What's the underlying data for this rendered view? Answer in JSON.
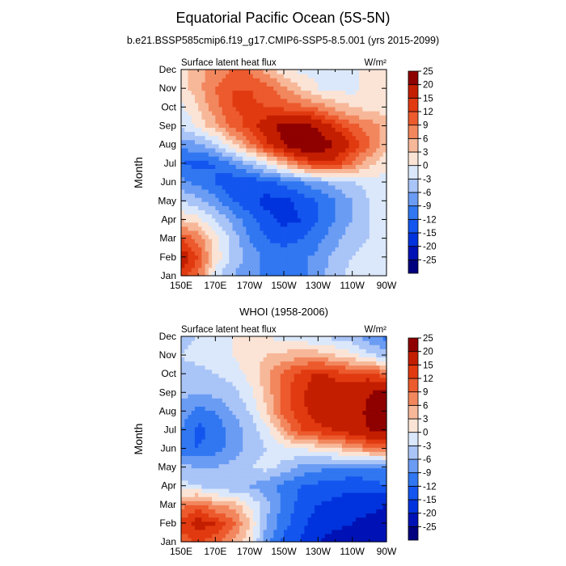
{
  "figure": {
    "title": "Equatorial Pacific Ocean (5S-5N)",
    "subtitle": "b.e21.BSSP585cmip6.f19_g17.CMIP6-SSP5-8.5.001 (yrs 2015-2099)"
  },
  "colorbar": {
    "levels": [
      "-25",
      "-20",
      "-15",
      "-12",
      "-9",
      "-6",
      "-3",
      "0",
      "3",
      "6",
      "9",
      "12",
      "15",
      "20",
      "25"
    ],
    "colors": [
      "#00007f",
      "#0012b5",
      "#0033dd",
      "#1355ee",
      "#3077f1",
      "#6a9cf4",
      "#a9c4f7",
      "#dbe8fb",
      "#fbe4d6",
      "#f7b899",
      "#f2875e",
      "#ec5a2d",
      "#e13a10",
      "#c41e00",
      "#8f0000"
    ]
  },
  "chart_data": [
    {
      "type": "heatmap",
      "title": "",
      "left_label": "Surface latent heat flux",
      "units": "W/m²",
      "ylabel": "Month",
      "xlabel": "",
      "x_ticks": [
        "150E",
        "170E",
        "170W",
        "150W",
        "130W",
        "110W",
        "90W"
      ],
      "x_values": [
        150,
        170,
        190,
        210,
        230,
        250,
        270
      ],
      "y_ticks": [
        "Jan",
        "Feb",
        "Mar",
        "Apr",
        "May",
        "Jun",
        "Jul",
        "Aug",
        "Sep",
        "Oct",
        "Nov",
        "Dec"
      ],
      "xlim": [
        150,
        270
      ],
      "months_range": [
        1,
        12
      ],
      "rows_lon": [
        150,
        160,
        170,
        180,
        190,
        200,
        210,
        220,
        230,
        240,
        250,
        260,
        270
      ],
      "values": [
        [
          14,
          9,
          -2,
          -6,
          -8,
          -10,
          -11,
          -10,
          -7,
          -4,
          -2,
          -1,
          0
        ],
        [
          18,
          12,
          2,
          -4,
          -7,
          -10,
          -11,
          -10,
          -8,
          -5,
          -3,
          -2,
          -1
        ],
        [
          12,
          8,
          1,
          -4,
          -9,
          -12,
          -13,
          -12,
          -10,
          -7,
          -4,
          -3,
          -2
        ],
        [
          3,
          1,
          -3,
          -7,
          -11,
          -14,
          -16,
          -15,
          -12,
          -9,
          -6,
          -3,
          -2
        ],
        [
          -3,
          -5,
          -8,
          -12,
          -14,
          -16,
          -16,
          -14,
          -12,
          -9,
          -6,
          -3,
          -1
        ],
        [
          -8,
          -10,
          -12,
          -14,
          -14,
          -13,
          -11,
          -9,
          -7,
          -5,
          -3,
          -2,
          -1
        ],
        [
          -12,
          -13,
          -12,
          -9,
          -5,
          -1,
          4,
          10,
          14,
          13,
          9,
          4,
          1
        ],
        [
          -8,
          -7,
          -4,
          2,
          8,
          14,
          20,
          24,
          24,
          20,
          14,
          9,
          4
        ],
        [
          -3,
          1,
          5,
          10,
          13,
          18,
          22,
          22,
          19,
          14,
          10,
          8,
          5
        ],
        [
          -1,
          3,
          8,
          12,
          13,
          12,
          11,
          10,
          8,
          5,
          3,
          2,
          1
        ],
        [
          1,
          5,
          9,
          12,
          12,
          10,
          7,
          3,
          0,
          -1,
          -1,
          1,
          1
        ],
        [
          2,
          5,
          7,
          9,
          9,
          5,
          1,
          -1,
          -1,
          0,
          0,
          0,
          0
        ]
      ]
    },
    {
      "type": "heatmap",
      "title": "WHOI (1958-2006)",
      "left_label": "Surface latent heat flux",
      "units": "W/m²",
      "ylabel": "Month",
      "xlabel": "",
      "x_ticks": [
        "150E",
        "170E",
        "170W",
        "150W",
        "130W",
        "110W",
        "90W"
      ],
      "x_values": [
        150,
        170,
        190,
        210,
        230,
        250,
        270
      ],
      "y_ticks": [
        "Jan",
        "Feb",
        "Mar",
        "Apr",
        "May",
        "Jun",
        "Jul",
        "Aug",
        "Sep",
        "Oct",
        "Nov",
        "Dec"
      ],
      "xlim": [
        150,
        270
      ],
      "months_range": [
        1,
        12
      ],
      "rows_lon": [
        150,
        160,
        170,
        180,
        190,
        200,
        210,
        220,
        230,
        240,
        250,
        260,
        270
      ],
      "values": [
        [
          10,
          13,
          10,
          6,
          1,
          -8,
          -13,
          -15,
          -20,
          -22,
          -22,
          -25,
          -25
        ],
        [
          13,
          17,
          15,
          10,
          3,
          -6,
          -11,
          -14,
          -17,
          -19,
          -20,
          -22,
          -22
        ],
        [
          8,
          10,
          6,
          5,
          0,
          -5,
          -10,
          -13,
          -15,
          -16,
          -18,
          -18,
          -20
        ],
        [
          -2,
          -3,
          -5,
          -6,
          -6,
          -8,
          -10,
          -12,
          -13,
          -13,
          -14,
          -13,
          -12
        ],
        [
          -5,
          -6,
          -6,
          -5,
          -3,
          -2,
          -4,
          -7,
          -8,
          -9,
          -10,
          -10,
          -10
        ],
        [
          -11,
          -12,
          -10,
          -8,
          -5,
          -3,
          -1,
          0,
          1,
          3,
          5,
          8,
          10
        ],
        [
          -9,
          -13,
          -11,
          -8,
          -5,
          -1,
          6,
          12,
          14,
          15,
          18,
          20,
          20
        ],
        [
          -7,
          -10,
          -9,
          -6,
          -3,
          3,
          10,
          14,
          17,
          17,
          18,
          21,
          22
        ],
        [
          -5,
          -6,
          -5,
          -4,
          -1,
          4,
          11,
          14,
          18,
          17,
          18,
          20,
          21
        ],
        [
          -4,
          -4,
          -3,
          -2,
          1,
          5,
          10,
          13,
          16,
          14,
          12,
          13,
          10
        ],
        [
          -3,
          -2,
          -1,
          0,
          2,
          3,
          4,
          5,
          5,
          3,
          1,
          -2,
          -5
        ],
        [
          -4,
          -3,
          -1,
          0,
          1,
          0,
          -1,
          -2,
          -3,
          -4,
          -5,
          -8,
          -10
        ]
      ]
    }
  ]
}
